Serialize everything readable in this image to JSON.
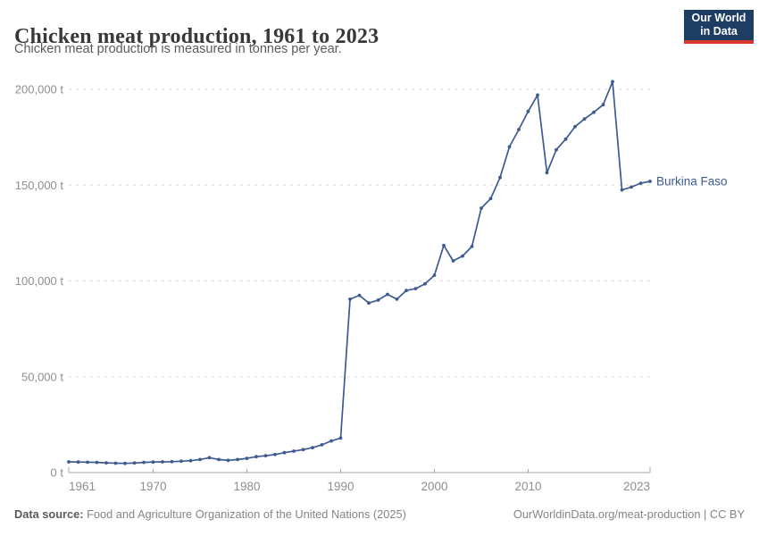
{
  "header": {
    "title": "Chicken meat production, 1961 to 2023",
    "subtitle": "Chicken meat production is measured in tonnes per year.",
    "logo": {
      "line1": "Our World",
      "line2": "in Data",
      "bg_color": "#1d3d63",
      "accent_color": "#d7382e"
    }
  },
  "chart_data": {
    "type": "line",
    "title": "Chicken meat production, 1961 to 2023",
    "unit": "tonnes per year",
    "xlabel": "",
    "ylabel": "",
    "xlim": [
      1961,
      2023
    ],
    "ylim": [
      0,
      200000
    ],
    "grid": "horizontal-dashed",
    "legend_position": "end-of-line-label",
    "x_ticks": [
      1961,
      1970,
      1980,
      1990,
      2000,
      2010,
      2023
    ],
    "y_ticks": [
      0,
      50000,
      100000,
      150000,
      200000
    ],
    "y_tick_labels": [
      "0 t",
      "50,000 t",
      "100,000 t",
      "150,000 t",
      "200,000 t"
    ],
    "colors": {
      "line": "#3d5a91",
      "gridline": "#d9d9d9",
      "axis": "#a5a5a5",
      "tick_label": "#8f8f8f"
    },
    "series": [
      {
        "name": "Burkina Faso",
        "color": "#3d5a91",
        "x": [
          1961,
          1962,
          1963,
          1964,
          1965,
          1966,
          1967,
          1968,
          1969,
          1970,
          1971,
          1972,
          1973,
          1974,
          1975,
          1976,
          1977,
          1978,
          1979,
          1980,
          1981,
          1982,
          1983,
          1984,
          1985,
          1986,
          1987,
          1988,
          1989,
          1990,
          1991,
          1992,
          1993,
          1994,
          1995,
          1996,
          1997,
          1998,
          1999,
          2000,
          2001,
          2002,
          2003,
          2004,
          2005,
          2006,
          2007,
          2008,
          2009,
          2010,
          2011,
          2012,
          2013,
          2014,
          2015,
          2016,
          2017,
          2018,
          2019,
          2020,
          2021,
          2022,
          2023
        ],
        "values": [
          5600,
          5500,
          5400,
          5300,
          5100,
          4900,
          4800,
          5000,
          5300,
          5500,
          5600,
          5700,
          5900,
          6200,
          6800,
          7800,
          6800,
          6400,
          6800,
          7400,
          8300,
          8800,
          9400,
          10400,
          11200,
          12000,
          13000,
          14500,
          16500,
          18000,
          90500,
          92500,
          88500,
          90000,
          93000,
          90500,
          95000,
          96000,
          98500,
          103000,
          118500,
          110500,
          113000,
          118000,
          138000,
          143000,
          154000,
          170000,
          179000,
          188500,
          197000,
          156500,
          168500,
          174000,
          180500,
          184500,
          188000,
          192000,
          204000,
          147500,
          149000,
          151000,
          152000
        ]
      }
    ]
  },
  "footer": {
    "datasource_label": "Data source:",
    "datasource_text": " Food and Agriculture Organization of the United Nations (2025)",
    "credit_link": "OurWorldinData.org/meat-production",
    "credit_license": " | CC BY"
  }
}
